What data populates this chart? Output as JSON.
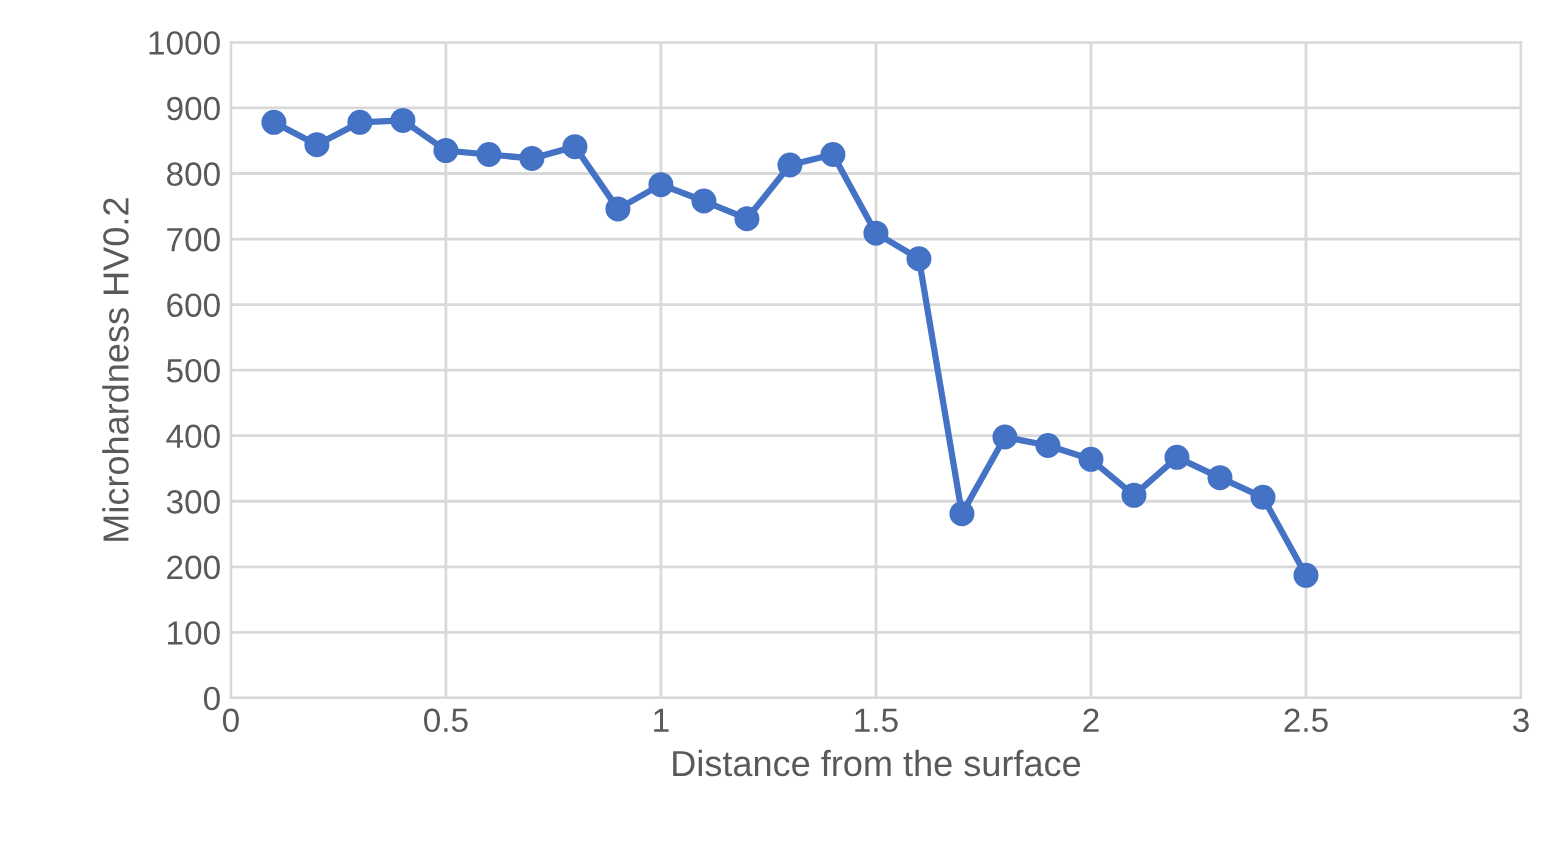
{
  "chart_data": {
    "type": "line",
    "xlabel": "Distance from the surface",
    "ylabel": "Microhardness HV0.2",
    "x": [
      0.1,
      0.2,
      0.3,
      0.4,
      0.5,
      0.6,
      0.7,
      0.8,
      0.9,
      1.0,
      1.1,
      1.2,
      1.3,
      1.4,
      1.5,
      1.6,
      1.7,
      1.8,
      1.9,
      2.0,
      2.1,
      2.2,
      2.3,
      2.4,
      2.5
    ],
    "series": [
      {
        "color": "#4472c4",
        "values": [
          878,
          844,
          878,
          881,
          835,
          829,
          823,
          841,
          746,
          783,
          758,
          731,
          813,
          829,
          709,
          670,
          281,
          398,
          385,
          364,
          309,
          367,
          336,
          306,
          187
        ]
      }
    ],
    "xlim": [
      0,
      3
    ],
    "xticks": [
      0,
      0.5,
      1,
      1.5,
      2,
      2.5,
      3
    ],
    "ylim": [
      0,
      1000
    ],
    "yticks": [
      0,
      100,
      200,
      300,
      400,
      500,
      600,
      700,
      800,
      900,
      1000
    ],
    "grid": true,
    "marker": "circle",
    "line_style": "solid",
    "legend": false
  }
}
